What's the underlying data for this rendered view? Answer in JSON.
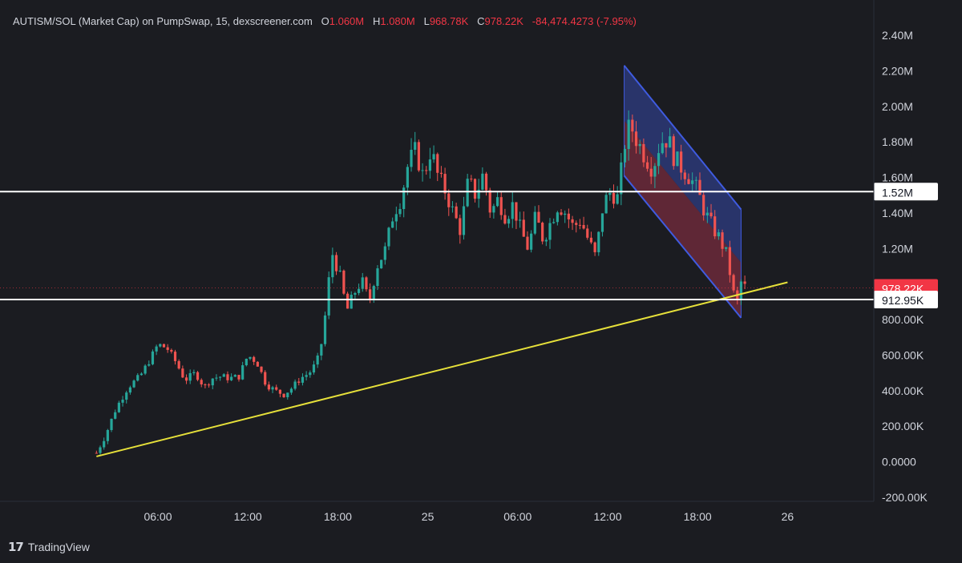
{
  "header": {
    "pair": "AUTISM/SOL (Market Cap) on PumpSwap, 15, dexscreener.com",
    "o_label": "O",
    "o_value": "1.060M",
    "h_label": "H",
    "h_value": "1.080M",
    "l_label": "L",
    "l_value": "968.78K",
    "c_label": "C",
    "c_value": "978.22K",
    "change": "-84,474.4273 (-7.95%)"
  },
  "brand": {
    "logo": "17",
    "name": "TradingView"
  },
  "colors": {
    "background": "#1b1c21",
    "up": "#26a69a",
    "down": "#ef5350",
    "trendline": "#e6e03a",
    "channel_upper": "#3549a8",
    "channel_lower": "#8e2f44",
    "hline": "#ffffff",
    "last_price_badge": "#f23645"
  },
  "chart_data": {
    "type": "candlestick",
    "timeframe": "15",
    "ylim": [
      -200000,
      2400000
    ],
    "y_ticks": [
      {
        "value": 2400000,
        "label": "2.40M"
      },
      {
        "value": 2200000,
        "label": "2.20M"
      },
      {
        "value": 2000000,
        "label": "2.00M"
      },
      {
        "value": 1800000,
        "label": "1.80M"
      },
      {
        "value": 1600000,
        "label": "1.60M"
      },
      {
        "value": 1400000,
        "label": "1.40M"
      },
      {
        "value": 1200000,
        "label": "1.20M"
      },
      {
        "value": 800000,
        "label": "800.00K"
      },
      {
        "value": 600000,
        "label": "600.00K"
      },
      {
        "value": 400000,
        "label": "400.00K"
      },
      {
        "value": 200000,
        "label": "200.00K"
      },
      {
        "value": 0,
        "label": "0.0000"
      },
      {
        "value": -200000,
        "label": "-200.00K"
      }
    ],
    "x_ticks": [
      {
        "hour": 6,
        "label": "06:00"
      },
      {
        "hour": 12,
        "label": "12:00"
      },
      {
        "hour": 18,
        "label": "18:00"
      },
      {
        "hour": 24,
        "label": "25"
      },
      {
        "hour": 30,
        "label": "06:00"
      },
      {
        "hour": 36,
        "label": "12:00"
      },
      {
        "hour": 42,
        "label": "18:00"
      },
      {
        "hour": 48,
        "label": "26"
      }
    ],
    "xlim_hours": [
      0.5,
      52.5
    ],
    "hlines": [
      {
        "value": 1520000,
        "label": "1.52M"
      },
      {
        "value": 912950,
        "label": "912.95K"
      }
    ],
    "last_price": {
      "value": 978220,
      "label": "978.22K"
    },
    "trendline": [
      [
        1.9,
        30000
      ],
      [
        48.0,
        1010000
      ]
    ],
    "channel": {
      "upper": [
        [
          37.1,
          2230000
        ],
        [
          44.9,
          1420000
        ]
      ],
      "mid": [
        [
          37.1,
          1920000
        ],
        [
          44.9,
          1120000
        ]
      ],
      "lower": [
        [
          37.1,
          1610000
        ],
        [
          44.9,
          810000
        ]
      ]
    },
    "series_keyframes": [
      [
        1.9,
        50000
      ],
      [
        2.5,
        150000
      ],
      [
        3.2,
        300000
      ],
      [
        4.0,
        420000
      ],
      [
        4.8,
        480000
      ],
      [
        5.5,
        580000
      ],
      [
        6.0,
        660000
      ],
      [
        6.6,
        640000
      ],
      [
        7.2,
        560000
      ],
      [
        7.8,
        460000
      ],
      [
        8.5,
        500000
      ],
      [
        9.1,
        420000
      ],
      [
        9.6,
        470000
      ],
      [
        10.2,
        480000
      ],
      [
        10.8,
        470000
      ],
      [
        11.4,
        480000
      ],
      [
        12.0,
        600000
      ],
      [
        12.6,
        560000
      ],
      [
        13.2,
        440000
      ],
      [
        13.8,
        400000
      ],
      [
        14.4,
        380000
      ],
      [
        15.0,
        420000
      ],
      [
        15.5,
        470000
      ],
      [
        16.1,
        500000
      ],
      [
        16.6,
        560000
      ],
      [
        17.0,
        700000
      ],
      [
        17.6,
        1180000
      ],
      [
        18.1,
        1060000
      ],
      [
        18.6,
        850000
      ],
      [
        19.1,
        950000
      ],
      [
        19.6,
        1020000
      ],
      [
        20.1,
        900000
      ],
      [
        20.6,
        1100000
      ],
      [
        21.2,
        1200000
      ],
      [
        21.7,
        1400000
      ],
      [
        22.2,
        1480000
      ],
      [
        22.7,
        1680000
      ],
      [
        23.2,
        1750000
      ],
      [
        23.7,
        1600000
      ],
      [
        24.2,
        1760000
      ],
      [
        24.7,
        1600000
      ],
      [
        25.2,
        1520000
      ],
      [
        25.7,
        1400000
      ],
      [
        26.2,
        1300000
      ],
      [
        26.7,
        1580000
      ],
      [
        27.2,
        1500000
      ],
      [
        27.7,
        1620000
      ],
      [
        28.2,
        1400000
      ],
      [
        28.7,
        1480000
      ],
      [
        29.2,
        1380000
      ],
      [
        29.7,
        1450000
      ],
      [
        30.2,
        1300000
      ],
      [
        30.7,
        1200000
      ],
      [
        31.2,
        1380000
      ],
      [
        31.7,
        1250000
      ],
      [
        32.2,
        1350000
      ],
      [
        32.7,
        1450000
      ],
      [
        33.2,
        1400000
      ],
      [
        33.7,
        1320000
      ],
      [
        34.2,
        1360000
      ],
      [
        34.7,
        1250000
      ],
      [
        35.2,
        1150000
      ],
      [
        35.7,
        1450000
      ],
      [
        36.2,
        1520000
      ],
      [
        36.7,
        1480000
      ],
      [
        37.1,
        1780000
      ],
      [
        37.5,
        1900000
      ],
      [
        38.0,
        1800000
      ],
      [
        38.5,
        1720000
      ],
      [
        39.0,
        1650000
      ],
      [
        39.5,
        1800000
      ],
      [
        40.0,
        1820000
      ],
      [
        40.5,
        1700000
      ],
      [
        41.0,
        1650000
      ],
      [
        41.5,
        1600000
      ],
      [
        42.0,
        1520000
      ],
      [
        42.5,
        1400000
      ],
      [
        43.0,
        1320000
      ],
      [
        43.5,
        1250000
      ],
      [
        44.0,
        1150000
      ],
      [
        44.3,
        980000
      ],
      [
        44.6,
        880000
      ],
      [
        44.9,
        1010000
      ],
      [
        45.2,
        978220
      ]
    ]
  }
}
